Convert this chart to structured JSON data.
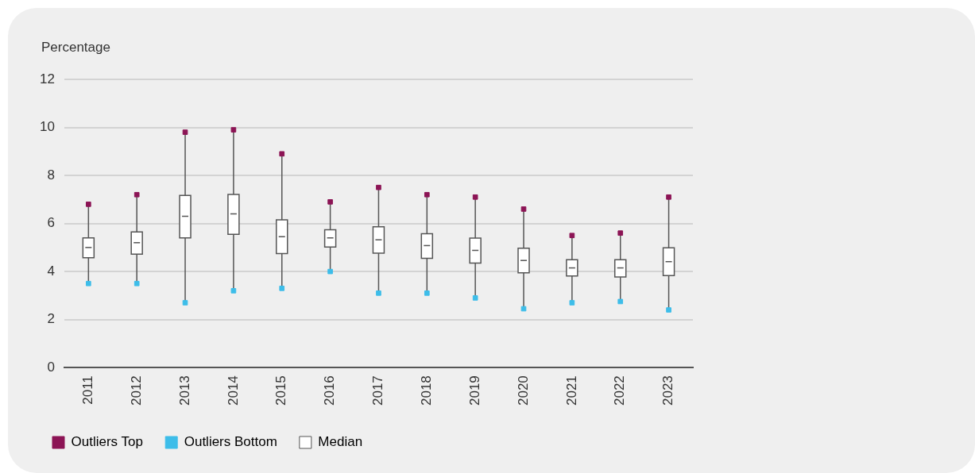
{
  "chart_data": {
    "type": "box",
    "ylabel": "Percentage",
    "categories": [
      "2011",
      "2012",
      "2013",
      "2014",
      "2015",
      "2016",
      "2017",
      "2018",
      "2019",
      "2020",
      "2021",
      "2022",
      "2023"
    ],
    "ylim": [
      0,
      12
    ],
    "yticks": [
      0,
      2,
      4,
      6,
      8,
      10,
      12
    ],
    "grid": "y",
    "legend": "bottom left",
    "series": [
      {
        "name": "Outliers Top",
        "type": "scatter",
        "color": "#8c1455",
        "values": [
          6.8,
          7.2,
          9.8,
          9.9,
          8.9,
          6.9,
          7.5,
          7.2,
          7.1,
          6.6,
          5.5,
          5.6,
          7.1
        ]
      },
      {
        "name": "Outliers Bottom",
        "type": "scatter",
        "color": "#3dbde9",
        "values": [
          3.5,
          3.5,
          2.7,
          3.2,
          3.3,
          4.0,
          3.1,
          3.1,
          2.9,
          2.45,
          2.7,
          2.75,
          2.4
        ]
      },
      {
        "name": "Median",
        "type": "box",
        "color": "#555555",
        "boxes": [
          {
            "low": 3.5,
            "q1": 4.57,
            "median": 5.0,
            "q3": 5.4,
            "high": 6.8
          },
          {
            "low": 3.5,
            "q1": 4.72,
            "median": 5.2,
            "q3": 5.65,
            "high": 7.2
          },
          {
            "low": 2.7,
            "q1": 5.4,
            "median": 6.3,
            "q3": 7.17,
            "high": 9.8
          },
          {
            "low": 3.2,
            "q1": 5.55,
            "median": 6.4,
            "q3": 7.21,
            "high": 9.9
          },
          {
            "low": 3.3,
            "q1": 4.75,
            "median": 5.45,
            "q3": 6.15,
            "high": 8.9
          },
          {
            "low": 4.0,
            "q1": 5.02,
            "median": 5.4,
            "q3": 5.74,
            "high": 6.9
          },
          {
            "low": 3.1,
            "q1": 4.76,
            "median": 5.32,
            "q3": 5.86,
            "high": 7.5
          },
          {
            "low": 3.1,
            "q1": 4.55,
            "median": 5.08,
            "q3": 5.57,
            "high": 7.2
          },
          {
            "low": 2.9,
            "q1": 4.35,
            "median": 4.88,
            "q3": 5.39,
            "high": 7.1
          },
          {
            "low": 2.45,
            "q1": 3.95,
            "median": 4.46,
            "q3": 4.97,
            "high": 6.6
          },
          {
            "low": 2.7,
            "q1": 3.81,
            "median": 4.15,
            "q3": 4.49,
            "high": 5.5
          },
          {
            "low": 2.75,
            "q1": 3.77,
            "median": 4.15,
            "q3": 4.49,
            "high": 5.6
          },
          {
            "low": 2.4,
            "q1": 3.83,
            "median": 4.41,
            "q3": 4.99,
            "high": 7.1
          }
        ]
      }
    ]
  }
}
